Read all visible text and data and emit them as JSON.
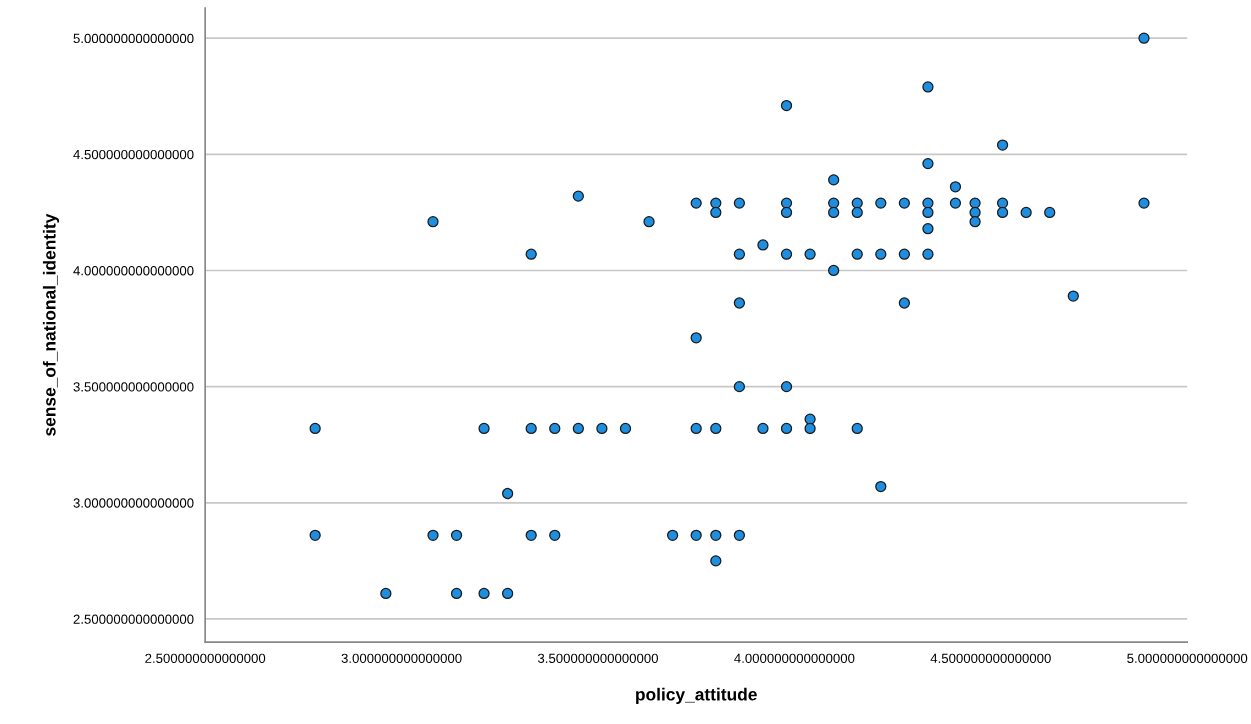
{
  "chart_data": {
    "type": "scatter",
    "xlabel": "policy_attitude",
    "ylabel": "sense_of_national_identity",
    "x": [
      2.78,
      2.78,
      2.96,
      3.08,
      3.08,
      3.14,
      3.14,
      3.21,
      3.21,
      3.27,
      3.27,
      3.33,
      3.33,
      3.33,
      3.39,
      3.39,
      3.45,
      3.45,
      3.51,
      3.57,
      3.63,
      3.69,
      3.75,
      3.75,
      3.75,
      3.75,
      3.8,
      3.8,
      3.8,
      3.8,
      3.8,
      3.86,
      3.86,
      3.86,
      3.86,
      3.86,
      3.92,
      3.92,
      3.98,
      3.98,
      3.98,
      3.98,
      3.98,
      3.98,
      4.04,
      4.04,
      4.04,
      4.1,
      4.1,
      4.1,
      4.1,
      4.16,
      4.16,
      4.16,
      4.16,
      4.22,
      4.22,
      4.22,
      4.28,
      4.28,
      4.28,
      4.34,
      4.34,
      4.34,
      4.34,
      4.34,
      4.34,
      4.41,
      4.41,
      4.46,
      4.46,
      4.46,
      4.53,
      4.53,
      4.53,
      4.59,
      4.65,
      4.71,
      4.89,
      4.89
    ],
    "values": [
      3.32,
      2.86,
      2.61,
      4.21,
      2.86,
      2.86,
      2.61,
      3.32,
      2.61,
      3.04,
      2.61,
      4.07,
      3.32,
      2.86,
      3.32,
      2.86,
      4.32,
      3.32,
      3.32,
      3.32,
      4.21,
      2.86,
      4.29,
      3.71,
      3.32,
      2.86,
      4.29,
      4.25,
      3.32,
      2.86,
      2.75,
      4.29,
      4.07,
      3.86,
      3.5,
      2.86,
      4.11,
      3.32,
      4.71,
      4.29,
      4.25,
      4.07,
      3.5,
      3.32,
      4.07,
      3.36,
      3.32,
      4.39,
      4.29,
      4.25,
      4.0,
      4.29,
      4.25,
      4.07,
      3.32,
      4.29,
      4.07,
      3.07,
      4.29,
      4.07,
      3.86,
      4.79,
      4.46,
      4.29,
      4.25,
      4.18,
      4.07,
      4.36,
      4.29,
      4.29,
      4.25,
      4.21,
      4.54,
      4.29,
      4.25,
      4.25,
      4.25,
      3.89,
      5.0,
      4.29
    ],
    "color": "#1e8fe0",
    "marker": "circle",
    "grid": "y",
    "xlim": [
      2.5,
      5.0
    ],
    "ylim": [
      2.4,
      5.13
    ],
    "xticks": [
      {
        "value": 2.5,
        "label": "2.500000000000000"
      },
      {
        "value": 3.0,
        "label": "3.000000000000000"
      },
      {
        "value": 3.5,
        "label": "3.500000000000000"
      },
      {
        "value": 4.0,
        "label": "4.000000000000000"
      },
      {
        "value": 4.5,
        "label": "4.500000000000000"
      },
      {
        "value": 5.0,
        "label": "5.000000000000000"
      }
    ],
    "yticks": [
      {
        "value": 2.5,
        "label": "2.500000000000000"
      },
      {
        "value": 3.0,
        "label": "3.000000000000000"
      },
      {
        "value": 3.5,
        "label": "3.500000000000000"
      },
      {
        "value": 4.0,
        "label": "4.000000000000000"
      },
      {
        "value": 4.5,
        "label": "4.500000000000000"
      },
      {
        "value": 5.0,
        "label": "5.000000000000000"
      }
    ]
  }
}
